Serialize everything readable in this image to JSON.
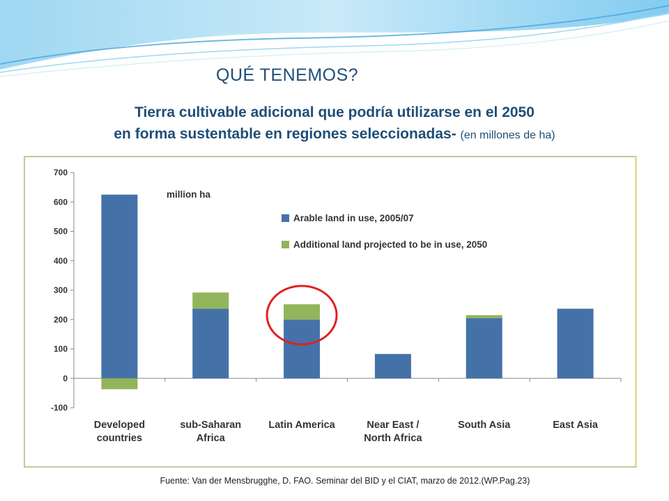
{
  "slide": {
    "title": "QUÉ TENEMOS?",
    "subtitle_line1": "Tierra cultivable adicional que podría utilizarse en el 2050",
    "subtitle_line2": "en forma sustentable en regiones seleccionadas-",
    "subtitle_units": "(en millones de ha)",
    "source": "Fuente: Van der Mensbrugghe, D. FAO. Seminar del BID y el CIAT, marzo de 2012.(WP.Pag.23)"
  },
  "colors": {
    "title": "#1f4e79",
    "in_use": "#4472a8",
    "additional": "#92b55a",
    "highlight_circle": "#e02020",
    "frame": "#c9c59a"
  },
  "chart_data": {
    "type": "bar",
    "stacked": true,
    "unit_label": "million ha",
    "categories": [
      [
        "Developed",
        "countries"
      ],
      [
        "sub-Saharan",
        "Africa"
      ],
      [
        "Latin America"
      ],
      [
        "Near East /",
        "North Africa"
      ],
      [
        "South Asia"
      ],
      [
        "East Asia"
      ]
    ],
    "series": [
      {
        "name": "Arable land in use, 2005/07",
        "values": [
          625,
          237,
          200,
          83,
          205,
          237
        ]
      },
      {
        "name": "Additional land projected to be in use, 2050",
        "values": [
          -37,
          55,
          52,
          0,
          10,
          0
        ]
      }
    ],
    "ylim": [
      -100,
      700
    ],
    "yticks": [
      -100,
      0,
      100,
      200,
      300,
      400,
      500,
      600,
      700
    ],
    "legend_position": "top-right",
    "grid": false,
    "highlighted_category": "Latin America"
  }
}
